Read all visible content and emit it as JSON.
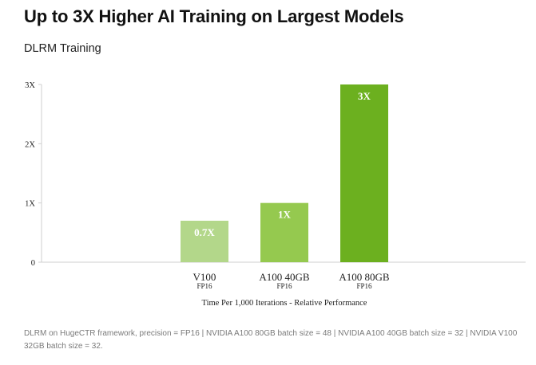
{
  "header": {
    "title": "Up to 3X Higher AI Training on Largest Models",
    "subtitle": "DLRM Training"
  },
  "footnote": "DLRM on HugeCTR framework, precision = FP16 | NVIDIA A100 80GB batch size = 48 | NVIDIA A100 40GB batch size = 32 | NVIDIA V100 32GB batch size = 32.",
  "chart_data": {
    "type": "bar",
    "title": "DLRM Training",
    "xlabel": "Time Per 1,000 Iterations - Relative Performance",
    "ylabel": "",
    "categories": [
      "V100",
      "A100 40GB",
      "A100 80GB"
    ],
    "sublabels": [
      "FP16",
      "FP16",
      "FP16"
    ],
    "values": [
      0.7,
      1,
      3
    ],
    "data_labels": [
      "0.7X",
      "1X",
      "3X"
    ],
    "colors": [
      "#b3d78a",
      "#95c94f",
      "#6cb01f"
    ],
    "ylim": [
      0,
      3
    ],
    "yticks": [
      0,
      1,
      2,
      3
    ],
    "ytick_labels": [
      "0",
      "1X",
      "2X",
      "3X"
    ],
    "grid": false,
    "legend": "none"
  }
}
